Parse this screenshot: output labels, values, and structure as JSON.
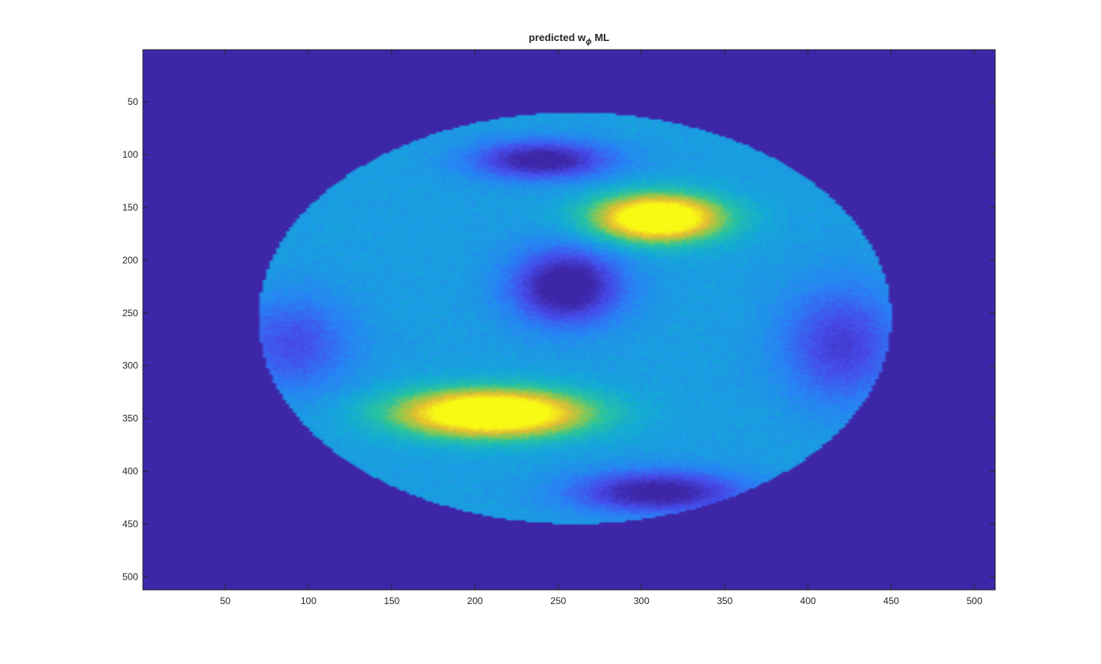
{
  "chart_data": {
    "type": "heatmap",
    "title": {
      "prefix": "predicted  w",
      "subscript": "ϕ",
      "suffix": "  ML"
    },
    "xlabel": "",
    "ylabel": "",
    "xlim": [
      0.5,
      512.5
    ],
    "ylim": [
      0.5,
      512.5
    ],
    "y_direction": "reversed",
    "x_ticks": [
      50,
      100,
      150,
      200,
      250,
      300,
      350,
      400,
      450,
      500
    ],
    "y_ticks": [
      50,
      100,
      150,
      200,
      250,
      300,
      350,
      400,
      450,
      500
    ],
    "colormap": "parula",
    "background_color": "#3e26a8",
    "grid": false,
    "legend": "none",
    "masked_region": {
      "shape": "ellipse",
      "center": [
        260,
        255
      ],
      "radius_x": 190,
      "radius_y": 195
    },
    "features": [
      {
        "kind": "high",
        "center": [
          310,
          160
        ],
        "spread": [
          38,
          22
        ],
        "level": 0.85
      },
      {
        "kind": "high",
        "center": [
          210,
          345
        ],
        "spread": [
          55,
          22
        ],
        "level": 0.9
      },
      {
        "kind": "low",
        "center": [
          240,
          105
        ],
        "spread": [
          40,
          18
        ],
        "level": -0.45
      },
      {
        "kind": "low",
        "center": [
          255,
          225
        ],
        "spread": [
          32,
          35
        ],
        "level": -0.5
      },
      {
        "kind": "low",
        "center": [
          310,
          420
        ],
        "spread": [
          50,
          20
        ],
        "level": -0.45
      },
      {
        "kind": "low",
        "center": [
          90,
          280
        ],
        "spread": [
          35,
          45
        ],
        "level": -0.25
      },
      {
        "kind": "low",
        "center": [
          420,
          280
        ],
        "spread": [
          35,
          55
        ],
        "level": -0.3
      }
    ],
    "baseline_level": 0.4
  }
}
